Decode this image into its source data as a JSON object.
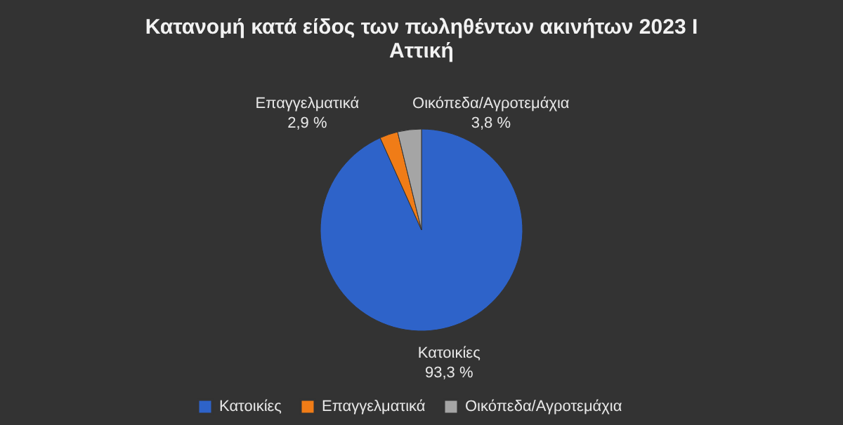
{
  "chart_data": {
    "type": "pie",
    "title": [
      "Κατανομή κατά είδος των πωληθέντων ακινήτων 2023 Ι",
      "Αττική"
    ],
    "categories": [
      "Κατοικίες",
      "Επαγγελματικά",
      "Οικόπεδα/Αγροτεμάχια"
    ],
    "values": [
      93.3,
      2.9,
      3.8
    ],
    "value_labels": [
      "93,3 %",
      "2,9 %",
      "3,8 %"
    ],
    "colors": [
      "#2e63c9",
      "#f07c17",
      "#a5a5a5"
    ],
    "legend": "bottom"
  }
}
